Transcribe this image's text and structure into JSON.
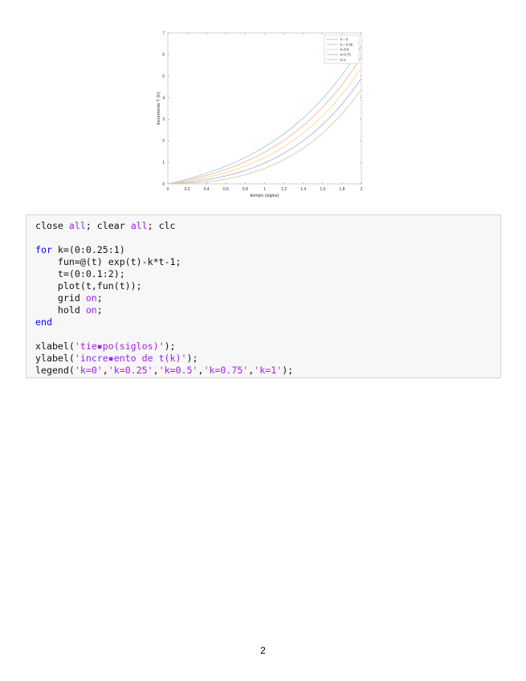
{
  "chart_data": {
    "type": "line",
    "title": "",
    "xlabel": "tiempo (siglos)",
    "ylabel": "Incremento T (K)",
    "xlim": [
      0,
      2
    ],
    "ylim": [
      0,
      7
    ],
    "xticks": [
      "0",
      "0.2",
      "0.4",
      "0.6",
      "0.8",
      "1",
      "1.2",
      "1.4",
      "1.6",
      "1.8",
      "2"
    ],
    "yticks": [
      "0",
      "1",
      "2",
      "3",
      "4",
      "5",
      "6",
      "7"
    ],
    "grid": false,
    "legend_position": "top-right",
    "x": [
      0,
      0.1,
      0.2,
      0.3,
      0.4,
      0.5,
      0.6,
      0.7,
      0.8,
      0.9,
      1.0,
      1.1,
      1.2,
      1.3,
      1.4,
      1.5,
      1.6,
      1.7,
      1.8,
      1.9,
      2.0
    ],
    "series": [
      {
        "name": "k = 0",
        "k": 0,
        "color": "#a9cfea"
      },
      {
        "name": "k = 0.25",
        "k": 0.25,
        "color": "#f1bea4"
      },
      {
        "name": "k=0.5",
        "k": 0.5,
        "color": "#f4dc9f"
      },
      {
        "name": "k=0.75",
        "k": 0.75,
        "color": "#cbb1da"
      },
      {
        "name": "k=1",
        "k": 1,
        "color": "#c2dda5"
      }
    ],
    "function": "exp(t)-k*t-1"
  },
  "code": {
    "lines": [
      [
        {
          "t": "close "
        },
        {
          "t": "all",
          "c": "str"
        },
        {
          "t": "; clear "
        },
        {
          "t": "all",
          "c": "str"
        },
        {
          "t": "; clc"
        }
      ],
      [],
      [
        {
          "t": "for",
          "c": "kw"
        },
        {
          "t": " k=(0:0.25:1)"
        }
      ],
      [
        {
          "t": "    fun=@(t) exp(t)-k*t-1;"
        }
      ],
      [
        {
          "t": "    t=(0:0.1:2);"
        }
      ],
      [
        {
          "t": "    plot(t,fun(t));"
        }
      ],
      [
        {
          "t": "    grid "
        },
        {
          "t": "on",
          "c": "str"
        },
        {
          "t": ";"
        }
      ],
      [
        {
          "t": "    hold "
        },
        {
          "t": "on",
          "c": "str"
        },
        {
          "t": ";"
        }
      ],
      [
        {
          "t": "end",
          "c": "kw"
        }
      ],
      [],
      [
        {
          "t": "xlabel("
        },
        {
          "t": "'tie▪po(siglos)'",
          "c": "str"
        },
        {
          "t": ");"
        }
      ],
      [
        {
          "t": "ylabel("
        },
        {
          "t": "'incre▪ento de t(k)'",
          "c": "str"
        },
        {
          "t": ");"
        }
      ],
      [
        {
          "t": "legend("
        },
        {
          "t": "'k=0'",
          "c": "str"
        },
        {
          "t": ","
        },
        {
          "t": "'k=0.25'",
          "c": "str"
        },
        {
          "t": ","
        },
        {
          "t": "'k=0.5'",
          "c": "str"
        },
        {
          "t": ","
        },
        {
          "t": "'k=0.75'",
          "c": "str"
        },
        {
          "t": ","
        },
        {
          "t": "'k=1'",
          "c": "str"
        },
        {
          "t": ");"
        }
      ]
    ]
  },
  "page": {
    "number": "2"
  }
}
